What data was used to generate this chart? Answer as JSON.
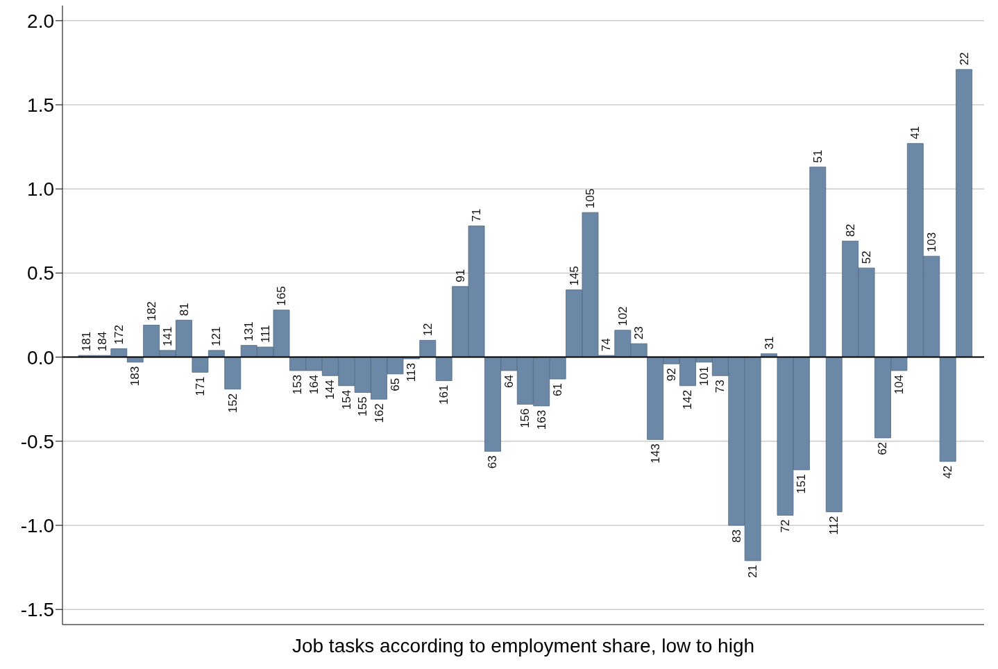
{
  "chart_data": {
    "type": "bar",
    "xlabel": "Job tasks according to employment share, low to high",
    "categories": [
      "181",
      "184",
      "172",
      "183",
      "182",
      "141",
      "81",
      "171",
      "121",
      "152",
      "131",
      "111",
      "165",
      "153",
      "164",
      "144",
      "154",
      "155",
      "162",
      "65",
      "113",
      "12",
      "161",
      "91",
      "71",
      "63",
      "64",
      "156",
      "163",
      "61",
      "145",
      "105",
      "74",
      "102",
      "23",
      "143",
      "92",
      "142",
      "101",
      "73",
      "83",
      "21",
      "31",
      "72",
      "151",
      "51",
      "112",
      "82",
      "52",
      "62",
      "104",
      "41",
      "103",
      "42",
      "22"
    ],
    "values": [
      0.01,
      0.01,
      0.05,
      -0.03,
      0.19,
      0.04,
      0.22,
      -0.09,
      0.04,
      -0.19,
      0.07,
      0.06,
      0.28,
      -0.08,
      -0.08,
      -0.11,
      -0.17,
      -0.21,
      -0.25,
      -0.1,
      -0.01,
      0.1,
      -0.14,
      0.42,
      0.78,
      -0.56,
      -0.08,
      -0.28,
      -0.29,
      -0.13,
      0.4,
      0.86,
      0.01,
      0.16,
      0.08,
      -0.49,
      -0.04,
      -0.17,
      -0.03,
      -0.11,
      -1.0,
      -1.21,
      0.02,
      -0.94,
      -0.67,
      1.13,
      -0.92,
      0.69,
      0.53,
      -0.48,
      -0.08,
      1.27,
      0.6,
      -0.62,
      1.71
    ],
    "color": "#6b89a6",
    "ylim": [
      -1.59,
      2.09
    ],
    "yticks": [
      {
        "value": -1.5,
        "label": "-1.5"
      },
      {
        "value": -1,
        "label": "-1.0"
      },
      {
        "value": -0.5,
        "label": "-0.5"
      },
      {
        "value": 0,
        "label": "0.0"
      },
      {
        "value": 0.5,
        "label": "0.5"
      },
      {
        "value": 1,
        "label": "1.0"
      },
      {
        "value": 1.5,
        "label": "1.5"
      },
      {
        "value": 2,
        "label": "2.0"
      }
    ],
    "grid": "y"
  }
}
